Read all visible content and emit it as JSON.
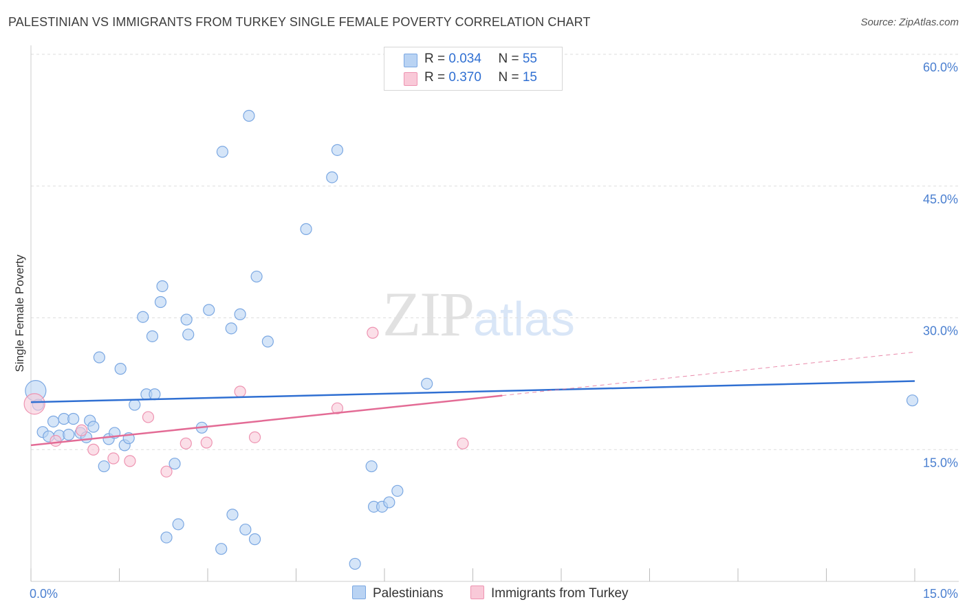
{
  "title": "PALESTINIAN VS IMMIGRANTS FROM TURKEY SINGLE FEMALE POVERTY CORRELATION CHART",
  "source": "Source: ZipAtlas.com",
  "watermark": {
    "zip": "ZIP",
    "atlas": "atlas"
  },
  "colors": {
    "blue_fill": "#b9d3f3",
    "blue_stroke": "#7aa7e2",
    "blue_line": "#2f6fd2",
    "pink_fill": "#f9c9d8",
    "pink_stroke": "#ee93b1",
    "pink_line": "#e36b95",
    "grid": "#dddddd",
    "axis_text": "#4a7fd0"
  },
  "legend": {
    "rows": [
      {
        "r_label": "R = ",
        "r_value": "0.034",
        "n_label": "N = ",
        "n_value": "55"
      },
      {
        "r_label": "R = ",
        "r_value": "0.370",
        "n_label": "N = ",
        "n_value": "15"
      }
    ]
  },
  "bottom_legend": {
    "series1": "Palestinians",
    "series2": "Immigrants from Turkey"
  },
  "chart_data": {
    "type": "scatter",
    "title": "PALESTINIAN VS IMMIGRANTS FROM TURKEY SINGLE FEMALE POVERTY CORRELATION CHART",
    "xlabel": "",
    "ylabel": "Single Female Poverty",
    "xlim": [
      0,
      15
    ],
    "ylim": [
      0,
      60
    ],
    "x_tick_labels": {
      "0": "0.0%",
      "15": "15.0%"
    },
    "y_tick_labels": {
      "15": "15.0%",
      "30": "30.0%",
      "45": "45.0%",
      "60": "60.0%"
    },
    "grid": true,
    "legend_position": "top-center",
    "series": [
      {
        "name": "Palestinians",
        "r": 0.034,
        "n": 55,
        "trend": {
          "x": [
            0,
            15
          ],
          "y": [
            20.4,
            22.8
          ],
          "dashed_from": null
        },
        "points": [
          {
            "x": 0.08,
            "y": 21.7,
            "big": true
          },
          {
            "x": 0.12,
            "y": 20.1
          },
          {
            "x": 0.2,
            "y": 17.0
          },
          {
            "x": 0.3,
            "y": 16.5
          },
          {
            "x": 0.38,
            "y": 18.2
          },
          {
            "x": 0.48,
            "y": 16.6
          },
          {
            "x": 0.56,
            "y": 18.5
          },
          {
            "x": 0.64,
            "y": 16.7
          },
          {
            "x": 0.72,
            "y": 18.5
          },
          {
            "x": 0.84,
            "y": 16.9
          },
          {
            "x": 0.94,
            "y": 16.4
          },
          {
            "x": 1.0,
            "y": 18.3
          },
          {
            "x": 1.06,
            "y": 17.6
          },
          {
            "x": 1.16,
            "y": 25.5
          },
          {
            "x": 1.24,
            "y": 13.1
          },
          {
            "x": 1.32,
            "y": 16.2
          },
          {
            "x": 1.42,
            "y": 16.9
          },
          {
            "x": 1.52,
            "y": 24.2
          },
          {
            "x": 1.59,
            "y": 15.5
          },
          {
            "x": 1.66,
            "y": 16.3
          },
          {
            "x": 1.76,
            "y": 20.1
          },
          {
            "x": 1.9,
            "y": 30.1
          },
          {
            "x": 1.96,
            "y": 21.3
          },
          {
            "x": 2.06,
            "y": 27.9
          },
          {
            "x": 2.1,
            "y": 21.3
          },
          {
            "x": 2.2,
            "y": 31.8
          },
          {
            "x": 2.23,
            "y": 33.6
          },
          {
            "x": 2.3,
            "y": 5.0
          },
          {
            "x": 2.44,
            "y": 13.4
          },
          {
            "x": 2.5,
            "y": 6.5
          },
          {
            "x": 2.64,
            "y": 29.8
          },
          {
            "x": 2.67,
            "y": 28.1
          },
          {
            "x": 2.9,
            "y": 17.5
          },
          {
            "x": 3.02,
            "y": 30.9
          },
          {
            "x": 3.23,
            "y": 3.7
          },
          {
            "x": 3.25,
            "y": 48.9
          },
          {
            "x": 3.4,
            "y": 28.8
          },
          {
            "x": 3.42,
            "y": 7.6
          },
          {
            "x": 3.55,
            "y": 30.4
          },
          {
            "x": 3.64,
            "y": 5.9
          },
          {
            "x": 3.7,
            "y": 53.0
          },
          {
            "x": 3.8,
            "y": 4.8
          },
          {
            "x": 3.83,
            "y": 34.7
          },
          {
            "x": 4.02,
            "y": 27.3
          },
          {
            "x": 4.67,
            "y": 40.1
          },
          {
            "x": 5.11,
            "y": 46.0
          },
          {
            "x": 5.2,
            "y": 49.1
          },
          {
            "x": 5.5,
            "y": 2.0
          },
          {
            "x": 5.78,
            "y": 13.1
          },
          {
            "x": 5.82,
            "y": 8.5
          },
          {
            "x": 5.96,
            "y": 8.5
          },
          {
            "x": 6.08,
            "y": 9.0
          },
          {
            "x": 6.22,
            "y": 10.3
          },
          {
            "x": 6.72,
            "y": 22.5
          },
          {
            "x": 14.96,
            "y": 20.6
          }
        ]
      },
      {
        "name": "Immigrants from Turkey",
        "r": 0.37,
        "n": 15,
        "trend": {
          "x": [
            0,
            15
          ],
          "y": [
            15.5,
            26.1
          ],
          "dashed_from": 8.0
        },
        "points": [
          {
            "x": 0.06,
            "y": 20.2,
            "big": true
          },
          {
            "x": 0.42,
            "y": 16.0
          },
          {
            "x": 0.86,
            "y": 17.2
          },
          {
            "x": 1.06,
            "y": 15.0
          },
          {
            "x": 1.4,
            "y": 14.0
          },
          {
            "x": 1.68,
            "y": 13.7
          },
          {
            "x": 1.99,
            "y": 18.7
          },
          {
            "x": 2.3,
            "y": 12.5
          },
          {
            "x": 2.63,
            "y": 15.7
          },
          {
            "x": 2.98,
            "y": 15.8
          },
          {
            "x": 3.55,
            "y": 21.6
          },
          {
            "x": 3.8,
            "y": 16.4
          },
          {
            "x": 5.2,
            "y": 19.7
          },
          {
            "x": 5.8,
            "y": 28.3
          },
          {
            "x": 7.33,
            "y": 15.7
          }
        ]
      }
    ]
  }
}
